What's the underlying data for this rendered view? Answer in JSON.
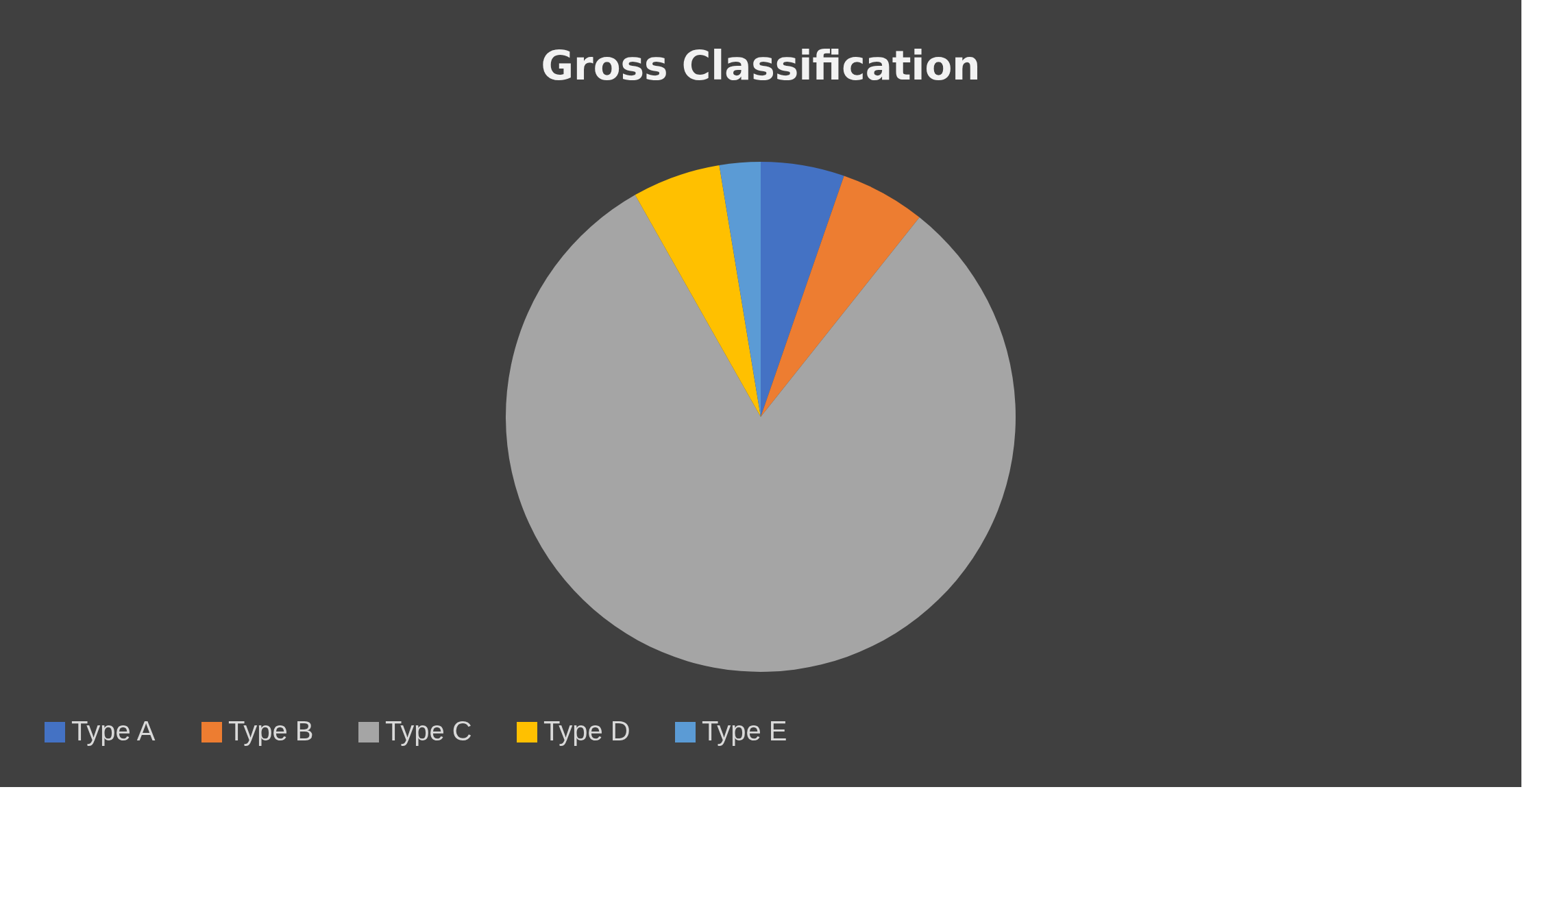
{
  "chart_data": {
    "type": "pie",
    "title": "Gross Classification",
    "categories": [
      "Type A",
      "Type B",
      "Type C",
      "Type D",
      "Type E"
    ],
    "values": [
      5.3,
      5.4,
      81.1,
      5.6,
      2.6
    ],
    "colors": [
      "#4472c4",
      "#ed7d31",
      "#a5a5a5",
      "#ffc000",
      "#5b9bd5"
    ],
    "legend": "bottom"
  }
}
